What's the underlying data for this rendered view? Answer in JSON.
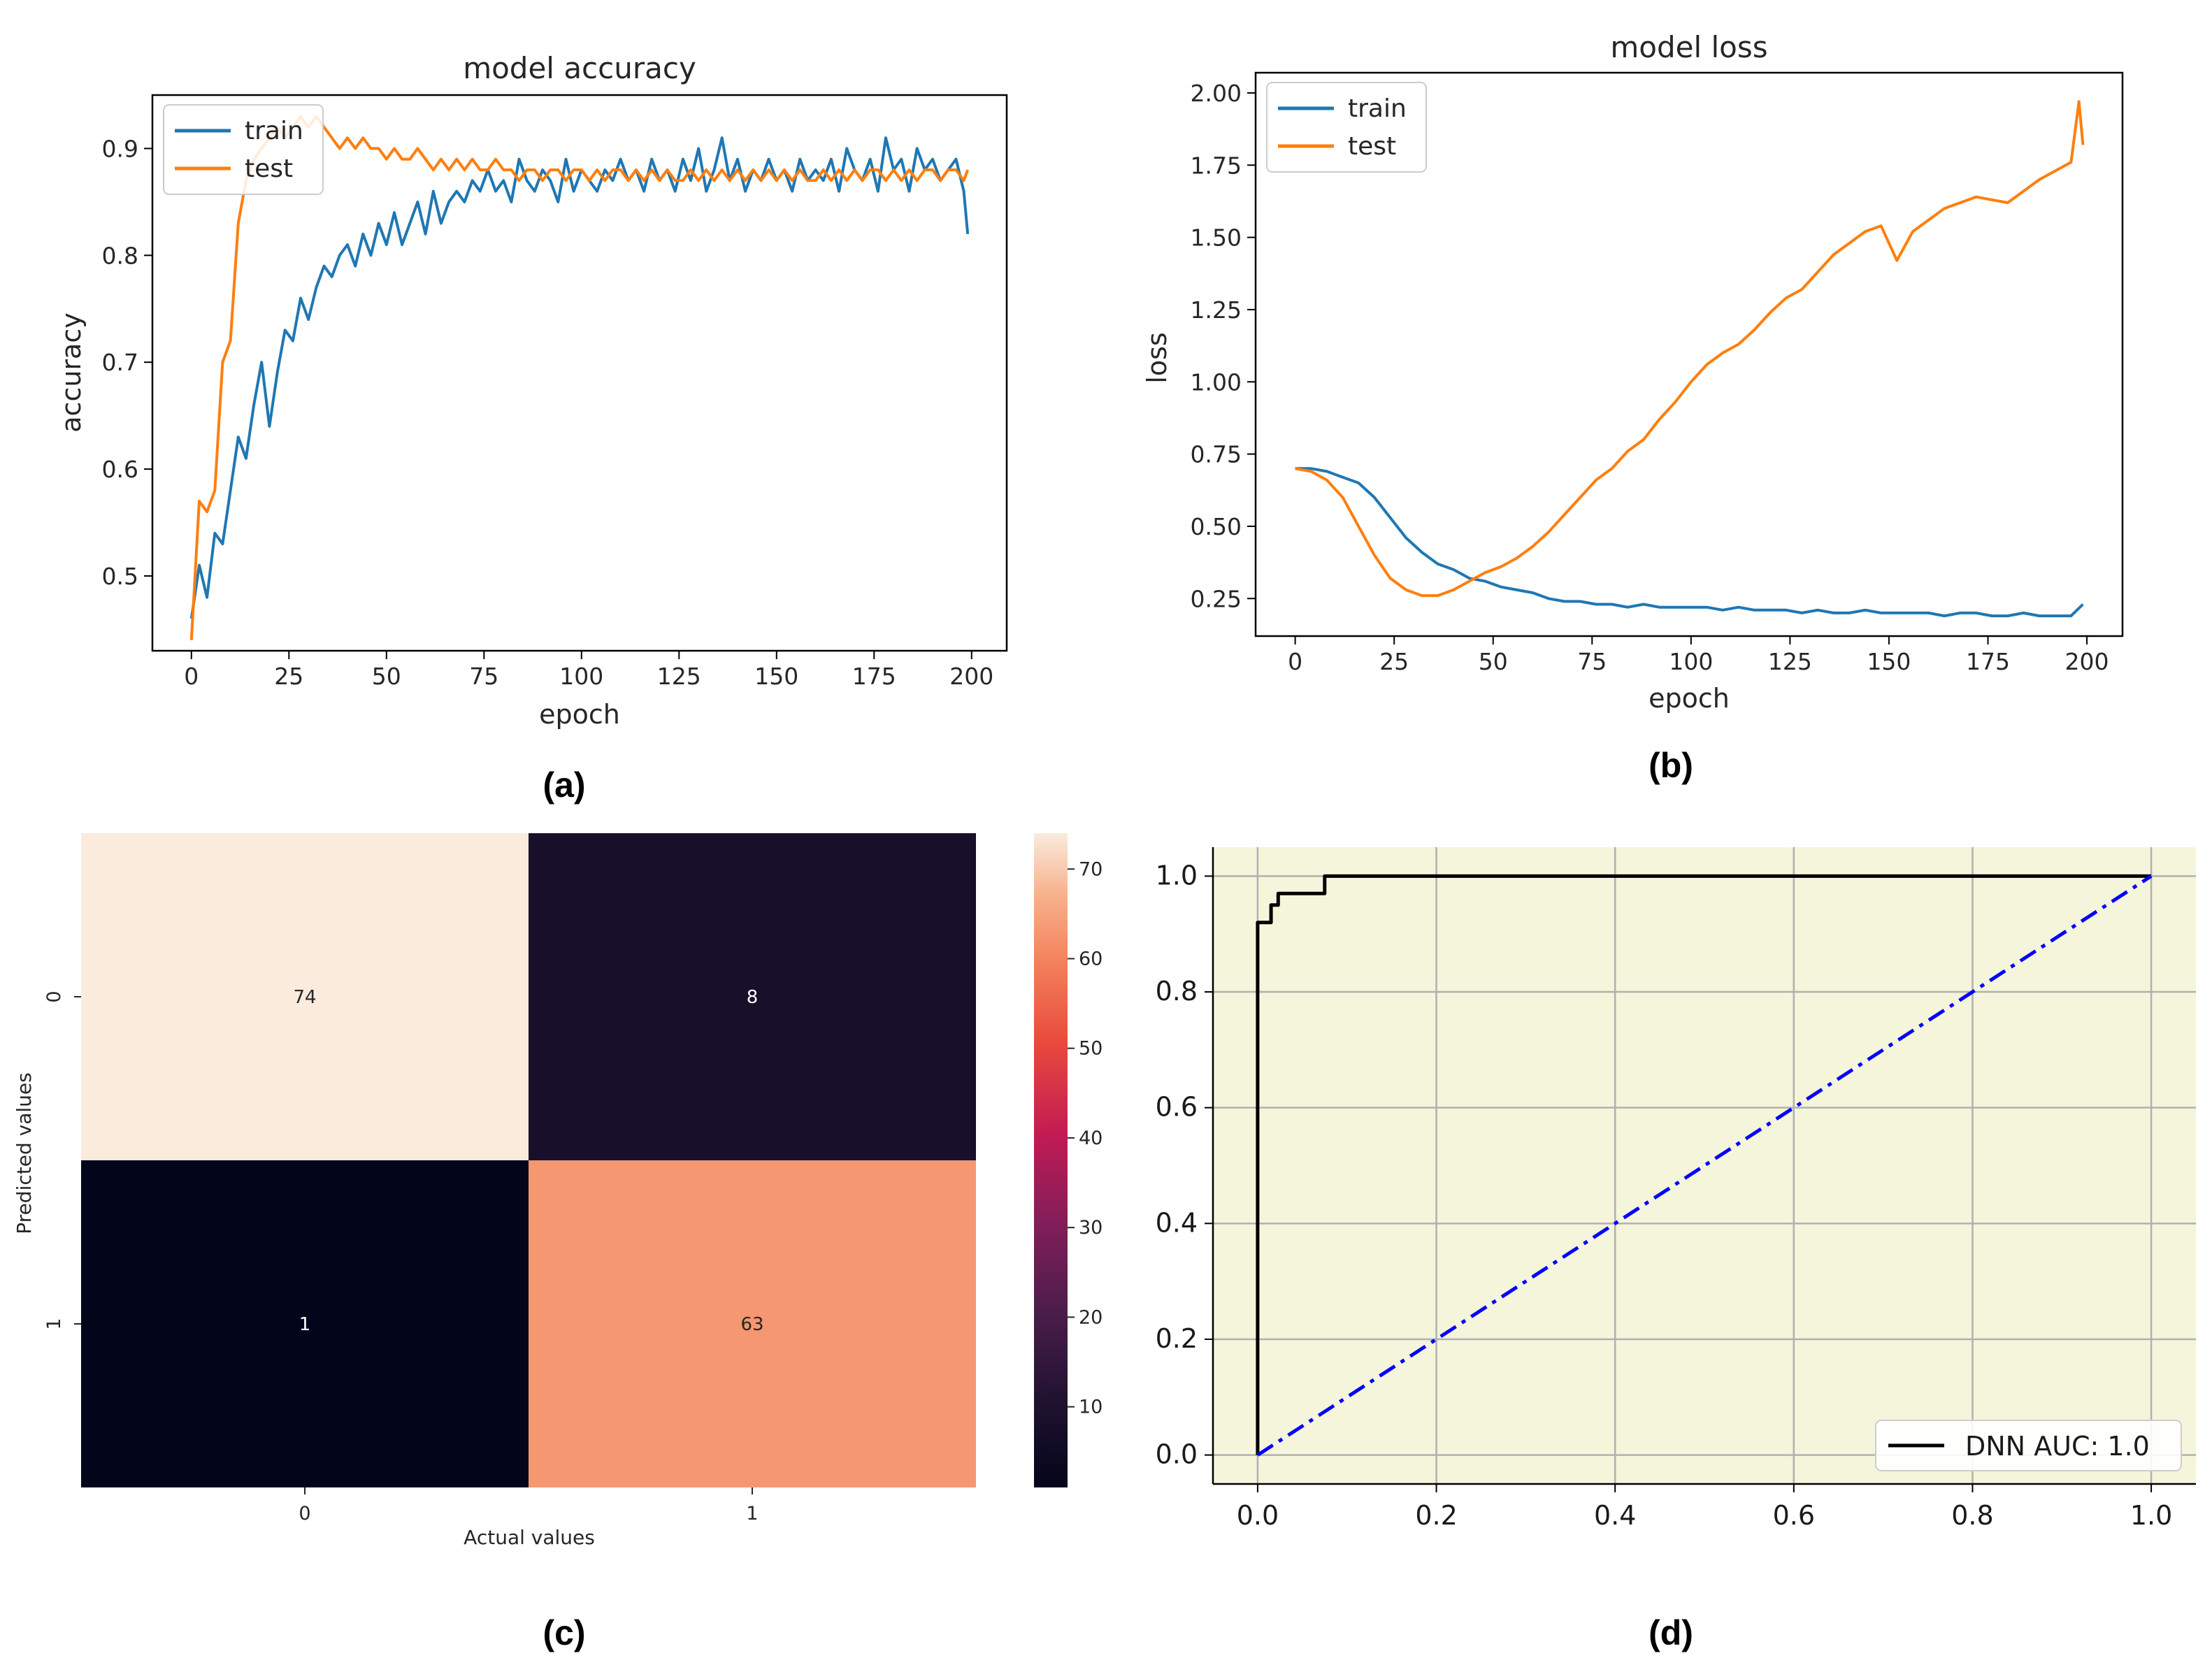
{
  "panels": {
    "a": "(a)",
    "b": "(b)",
    "c": "(c)",
    "d": "(d)"
  },
  "chart_data": [
    {
      "id": "a",
      "type": "line",
      "title": "model accuracy",
      "xlabel": "epoch",
      "ylabel": "accuracy",
      "xlim": [
        -10,
        209
      ],
      "ylim": [
        0.43,
        0.95
      ],
      "xticks": [
        0,
        25,
        50,
        75,
        100,
        125,
        150,
        175,
        200
      ],
      "yticks": [
        0.5,
        0.6,
        0.7,
        0.8,
        0.9
      ],
      "legend": "upper-left",
      "series": [
        {
          "name": "train",
          "color": "#1f77b4",
          "x": [
            0,
            2,
            4,
            6,
            8,
            10,
            12,
            14,
            16,
            18,
            20,
            22,
            24,
            26,
            28,
            30,
            32,
            34,
            36,
            38,
            40,
            42,
            44,
            46,
            48,
            50,
            52,
            54,
            56,
            58,
            60,
            62,
            64,
            66,
            68,
            70,
            72,
            74,
            76,
            78,
            80,
            82,
            84,
            86,
            88,
            90,
            92,
            94,
            96,
            98,
            100,
            102,
            104,
            106,
            108,
            110,
            112,
            114,
            116,
            118,
            120,
            122,
            124,
            126,
            128,
            130,
            132,
            134,
            136,
            138,
            140,
            142,
            144,
            146,
            148,
            150,
            152,
            154,
            156,
            158,
            160,
            162,
            164,
            166,
            168,
            170,
            172,
            174,
            176,
            178,
            180,
            182,
            184,
            186,
            188,
            190,
            192,
            194,
            196,
            198,
            199
          ],
          "y": [
            0.46,
            0.51,
            0.48,
            0.54,
            0.53,
            0.58,
            0.63,
            0.61,
            0.66,
            0.7,
            0.64,
            0.69,
            0.73,
            0.72,
            0.76,
            0.74,
            0.77,
            0.79,
            0.78,
            0.8,
            0.81,
            0.79,
            0.82,
            0.8,
            0.83,
            0.81,
            0.84,
            0.81,
            0.83,
            0.85,
            0.82,
            0.86,
            0.83,
            0.85,
            0.86,
            0.85,
            0.87,
            0.86,
            0.88,
            0.86,
            0.87,
            0.85,
            0.89,
            0.87,
            0.86,
            0.88,
            0.87,
            0.85,
            0.89,
            0.86,
            0.88,
            0.87,
            0.86,
            0.88,
            0.87,
            0.89,
            0.87,
            0.88,
            0.86,
            0.89,
            0.87,
            0.88,
            0.86,
            0.89,
            0.87,
            0.9,
            0.86,
            0.88,
            0.91,
            0.87,
            0.89,
            0.86,
            0.88,
            0.87,
            0.89,
            0.87,
            0.88,
            0.86,
            0.89,
            0.87,
            0.88,
            0.87,
            0.89,
            0.86,
            0.9,
            0.88,
            0.87,
            0.89,
            0.86,
            0.91,
            0.88,
            0.89,
            0.86,
            0.9,
            0.88,
            0.89,
            0.87,
            0.88,
            0.89,
            0.86,
            0.82
          ]
        },
        {
          "name": "test",
          "color": "#ff7f0e",
          "x": [
            0,
            2,
            4,
            6,
            8,
            10,
            12,
            14,
            16,
            18,
            20,
            22,
            24,
            26,
            28,
            30,
            32,
            34,
            36,
            38,
            40,
            42,
            44,
            46,
            48,
            50,
            52,
            54,
            56,
            58,
            60,
            62,
            64,
            66,
            68,
            70,
            72,
            74,
            76,
            78,
            80,
            82,
            84,
            86,
            88,
            90,
            92,
            94,
            96,
            98,
            100,
            102,
            104,
            106,
            108,
            110,
            112,
            114,
            116,
            118,
            120,
            122,
            124,
            126,
            128,
            130,
            132,
            134,
            136,
            138,
            140,
            142,
            144,
            146,
            148,
            150,
            152,
            154,
            156,
            158,
            160,
            162,
            164,
            166,
            168,
            170,
            172,
            174,
            176,
            178,
            180,
            182,
            184,
            186,
            188,
            190,
            192,
            194,
            196,
            198,
            199
          ],
          "y": [
            0.44,
            0.57,
            0.56,
            0.58,
            0.7,
            0.72,
            0.83,
            0.87,
            0.89,
            0.9,
            0.91,
            0.92,
            0.91,
            0.92,
            0.93,
            0.92,
            0.93,
            0.92,
            0.91,
            0.9,
            0.91,
            0.9,
            0.91,
            0.9,
            0.9,
            0.89,
            0.9,
            0.89,
            0.89,
            0.9,
            0.89,
            0.88,
            0.89,
            0.88,
            0.89,
            0.88,
            0.89,
            0.88,
            0.88,
            0.89,
            0.88,
            0.88,
            0.87,
            0.88,
            0.88,
            0.87,
            0.88,
            0.88,
            0.87,
            0.88,
            0.88,
            0.87,
            0.88,
            0.87,
            0.88,
            0.88,
            0.87,
            0.88,
            0.87,
            0.88,
            0.87,
            0.88,
            0.87,
            0.87,
            0.88,
            0.87,
            0.88,
            0.87,
            0.88,
            0.87,
            0.88,
            0.87,
            0.88,
            0.87,
            0.88,
            0.87,
            0.88,
            0.87,
            0.88,
            0.87,
            0.87,
            0.88,
            0.87,
            0.88,
            0.87,
            0.88,
            0.87,
            0.88,
            0.88,
            0.87,
            0.88,
            0.87,
            0.88,
            0.87,
            0.88,
            0.88,
            0.87,
            0.88,
            0.88,
            0.87,
            0.88
          ]
        }
      ]
    },
    {
      "id": "b",
      "type": "line",
      "title": "model loss",
      "xlabel": "epoch",
      "ylabel": "loss",
      "xlim": [
        -10,
        209
      ],
      "ylim": [
        0.12,
        2.07
      ],
      "xticks": [
        0,
        25,
        50,
        75,
        100,
        125,
        150,
        175,
        200
      ],
      "yticks": [
        0.25,
        0.5,
        0.75,
        1.0,
        1.25,
        1.5,
        1.75,
        2.0
      ],
      "yticklabels": [
        "0.25",
        "0.50",
        "0.75",
        "1.00",
        "1.25",
        "1.50",
        "1.75",
        "2.00"
      ],
      "legend": "upper-left",
      "series": [
        {
          "name": "train",
          "color": "#1f77b4",
          "x": [
            0,
            4,
            8,
            12,
            16,
            20,
            24,
            28,
            32,
            36,
            40,
            44,
            48,
            52,
            56,
            60,
            64,
            68,
            72,
            76,
            80,
            84,
            88,
            92,
            96,
            100,
            104,
            108,
            112,
            116,
            120,
            124,
            128,
            132,
            136,
            140,
            144,
            148,
            152,
            156,
            160,
            164,
            168,
            172,
            176,
            180,
            184,
            188,
            192,
            196,
            199
          ],
          "y": [
            0.7,
            0.7,
            0.69,
            0.67,
            0.65,
            0.6,
            0.53,
            0.46,
            0.41,
            0.37,
            0.35,
            0.32,
            0.31,
            0.29,
            0.28,
            0.27,
            0.25,
            0.24,
            0.24,
            0.23,
            0.23,
            0.22,
            0.23,
            0.22,
            0.22,
            0.22,
            0.22,
            0.21,
            0.22,
            0.21,
            0.21,
            0.21,
            0.2,
            0.21,
            0.2,
            0.2,
            0.21,
            0.2,
            0.2,
            0.2,
            0.2,
            0.19,
            0.2,
            0.2,
            0.19,
            0.19,
            0.2,
            0.19,
            0.19,
            0.19,
            0.23
          ]
        },
        {
          "name": "test",
          "color": "#ff7f0e",
          "x": [
            0,
            4,
            8,
            12,
            16,
            20,
            24,
            28,
            32,
            36,
            40,
            44,
            48,
            52,
            56,
            60,
            64,
            68,
            72,
            76,
            80,
            84,
            88,
            92,
            96,
            100,
            104,
            108,
            112,
            116,
            120,
            124,
            128,
            132,
            136,
            140,
            144,
            148,
            152,
            156,
            160,
            164,
            168,
            172,
            176,
            180,
            184,
            188,
            192,
            196,
            198,
            199
          ],
          "y": [
            0.7,
            0.69,
            0.66,
            0.6,
            0.5,
            0.4,
            0.32,
            0.28,
            0.26,
            0.26,
            0.28,
            0.31,
            0.34,
            0.36,
            0.39,
            0.43,
            0.48,
            0.54,
            0.6,
            0.66,
            0.7,
            0.76,
            0.8,
            0.87,
            0.93,
            1.0,
            1.06,
            1.1,
            1.13,
            1.18,
            1.24,
            1.29,
            1.32,
            1.38,
            1.44,
            1.48,
            1.52,
            1.54,
            1.42,
            1.52,
            1.56,
            1.6,
            1.62,
            1.64,
            1.63,
            1.62,
            1.66,
            1.7,
            1.73,
            1.76,
            1.97,
            1.82
          ]
        }
      ]
    },
    {
      "id": "c",
      "type": "heatmap",
      "xlabel": "Actual values",
      "ylabel": "Predicted values",
      "xticklabels": [
        "0",
        "1"
      ],
      "yticklabels": [
        "0",
        "1"
      ],
      "matrix": [
        [
          74,
          8
        ],
        [
          1,
          63
        ]
      ],
      "colorbar": {
        "vmin": 1,
        "vmax": 74,
        "ticks": [
          10,
          20,
          30,
          40,
          50,
          60,
          70
        ],
        "colormap": "rocket"
      }
    },
    {
      "id": "d",
      "type": "line",
      "xlim": [
        -0.05,
        1.05
      ],
      "ylim": [
        -0.05,
        1.05
      ],
      "xticks": [
        0.0,
        0.2,
        0.4,
        0.6,
        0.8,
        1.0
      ],
      "yticks": [
        0.0,
        0.2,
        0.4,
        0.6,
        0.8,
        1.0
      ],
      "grid": true,
      "background": "#f5f5dc",
      "legend": "lower-right",
      "series": [
        {
          "name": "DNN AUC: 1.0",
          "color": "#000000",
          "x": [
            0.0,
            0.0,
            0.0,
            0.015,
            0.015,
            0.023,
            0.023,
            0.075,
            0.075,
            1.0
          ],
          "y": [
            0.0,
            0.92,
            0.92,
            0.92,
            0.95,
            0.95,
            0.97,
            0.97,
            1.0,
            1.0
          ]
        },
        {
          "name": "",
          "color": "#0000ff",
          "dash": "dash-dot",
          "x": [
            0.0,
            1.0
          ],
          "y": [
            0.0,
            1.0
          ]
        }
      ]
    }
  ]
}
